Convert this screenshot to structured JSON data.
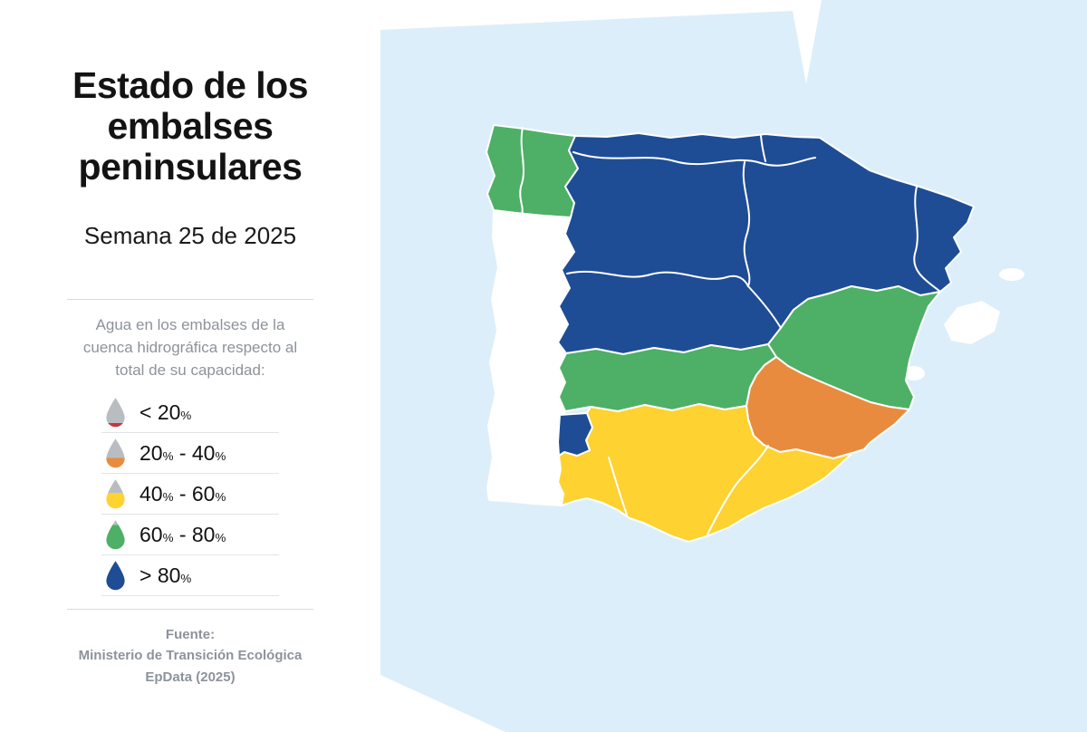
{
  "title": "Estado de los embalses peninsulares",
  "subtitle": "Semana 25 de 2025",
  "legend": {
    "description": "Agua en los embalses de la cuenca hidrográfica respecto al total de su capacidad:",
    "empty_color": "#b9bdc2",
    "items": [
      {
        "label": "< 20%",
        "color": "#c9353f",
        "empty_frac": "0.86"
      },
      {
        "label": "20% - 40%",
        "color": "#e98b3e",
        "empty_frac": "0.66"
      },
      {
        "label": "40% - 60%",
        "color": "#fdd231",
        "empty_frac": "0.46"
      },
      {
        "label": "60% - 80%",
        "color": "#4db066",
        "empty_frac": "0.16"
      },
      {
        "label": "> 80%",
        "color": "#1e4d95",
        "empty_frac": "0"
      }
    ]
  },
  "source": {
    "line1": "Fuente:",
    "line2": "Ministerio de Transición Ecológica",
    "line3": "EpData (2025)"
  },
  "map": {
    "sea_color": "#dceefa",
    "no_data_color": "#ffffff",
    "border_color": "#ffffff",
    "regions": {
      "galicia": {
        "color": "#4db066"
      },
      "north_central": {
        "color": "#1e4d95"
      },
      "jucar": {
        "color": "#4db066"
      },
      "guadiana": {
        "color": "#4db066"
      },
      "segura": {
        "color": "#e98b3e"
      },
      "guadalquivir_south": {
        "color": "#fdd231"
      },
      "huelva": {
        "color": "#1e4d95"
      }
    }
  }
}
